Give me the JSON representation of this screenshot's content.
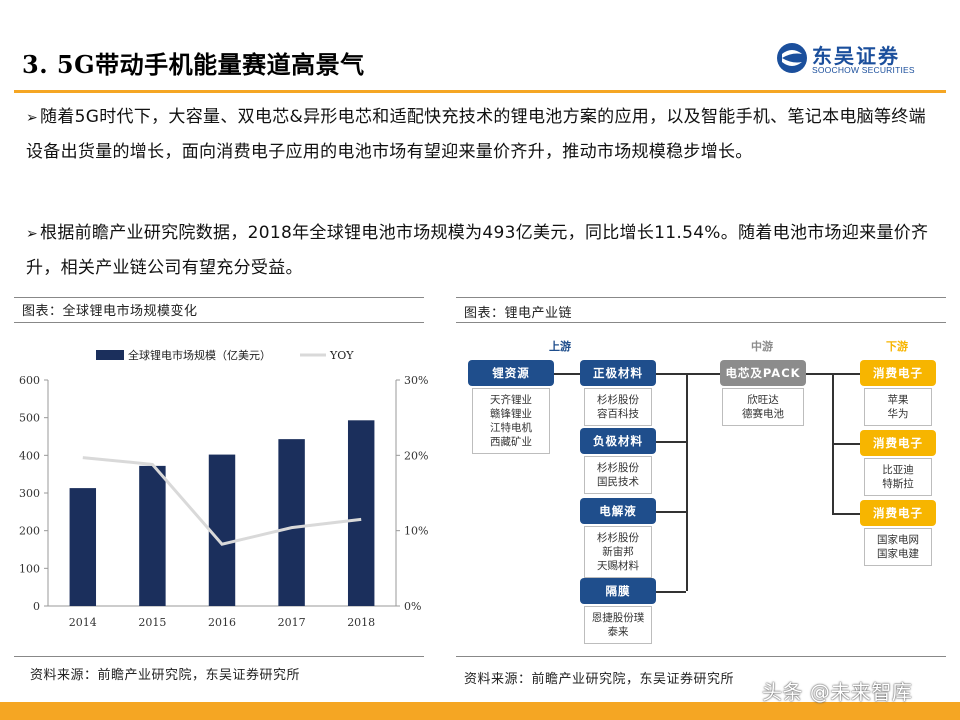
{
  "title": "3. 5G带动手机能量赛道高景气",
  "logo": {
    "cn": "东吴证券",
    "en": "SOOCHOW SECURITIES",
    "mark": "SCS"
  },
  "bullets": [
    {
      "arrow": "➢",
      "text": "随着5G时代下，大容量、双电芯&异形电芯和适配快充技术的锂电池方案的应用，以及智能手机、笔记本电脑等终端设备出货量的增长，面向消费电子应用的电池市场有望迎来量价齐升，推动市场规模稳步增长。"
    },
    {
      "arrow": "➢",
      "text": "根据前瞻产业研究院数据，2018年全球锂电池市场规模为493亿美元，同比增长11.54%。随着电池市场迎来量价齐升，相关产业链公司有望充分受益。"
    }
  ],
  "left_caption": "图表：全球锂电市场规模变化",
  "right_caption": "图表：锂电产业链",
  "left_source": "资料来源：前瞻产业研究院，东吴证券研究所",
  "right_source": "资料来源：前瞻产业研究院，东吴证券研究所",
  "watermark": "头条 @未来智库",
  "chart_data": {
    "type": "bar",
    "categories": [
      "2014",
      "2015",
      "2016",
      "2017",
      "2018"
    ],
    "series": [
      {
        "name": "全球锂电市场规模（亿美元）",
        "type": "bar",
        "axis": "left",
        "values": [
          313,
          372,
          402,
          443,
          493
        ],
        "color": "#1b2f5c"
      },
      {
        "name": "YOY",
        "type": "line",
        "axis": "right",
        "values": [
          19.7,
          18.8,
          8.2,
          10.4,
          11.5
        ],
        "color": "#d9d9d9"
      }
    ],
    "ylim": [
      0,
      600
    ],
    "yticks": [
      "0",
      "100",
      "200",
      "300",
      "400",
      "500",
      "600"
    ],
    "y2lim": [
      0,
      30
    ],
    "y2ticks": [
      "0%",
      "10%",
      "20%",
      "30%"
    ],
    "grid": false,
    "legend_placement": "top"
  },
  "diagram": {
    "stages": {
      "up": "上游",
      "mid": "中游",
      "down": "下游"
    },
    "upstream": [
      {
        "label": "锂资源",
        "items": [
          "天齐锂业",
          "赣锋锂业",
          "江特电机",
          "西藏矿业"
        ]
      },
      {
        "label": "正极材料",
        "items": [
          "杉杉股份",
          "容百科技"
        ]
      },
      {
        "label": "负极材料",
        "items": [
          "杉杉股份",
          "国民技术"
        ]
      },
      {
        "label": "电解液",
        "items": [
          "杉杉股份",
          "新宙邦",
          "天赐材料"
        ]
      },
      {
        "label": "隔膜",
        "items": [
          "恩捷股份璞",
          "泰来"
        ]
      }
    ],
    "midstream": [
      {
        "label": "电芯及PACK",
        "items": [
          "欣旺达",
          "德赛电池"
        ]
      }
    ],
    "downstream": [
      {
        "label": "消费电子",
        "items": [
          "苹果",
          "华为"
        ]
      },
      {
        "label": "消费电子",
        "items": [
          "比亚迪",
          "特斯拉"
        ]
      },
      {
        "label": "消费电子",
        "items": [
          "国家电网",
          "国家电建"
        ]
      }
    ],
    "colors": {
      "blue": "#1f4e8c",
      "gray": "#8c8c8c",
      "yellow": "#f7b500",
      "stage_up": "#1f4e8c",
      "stage_mid": "#8c8c8c",
      "stage_down": "#f7b500"
    }
  }
}
